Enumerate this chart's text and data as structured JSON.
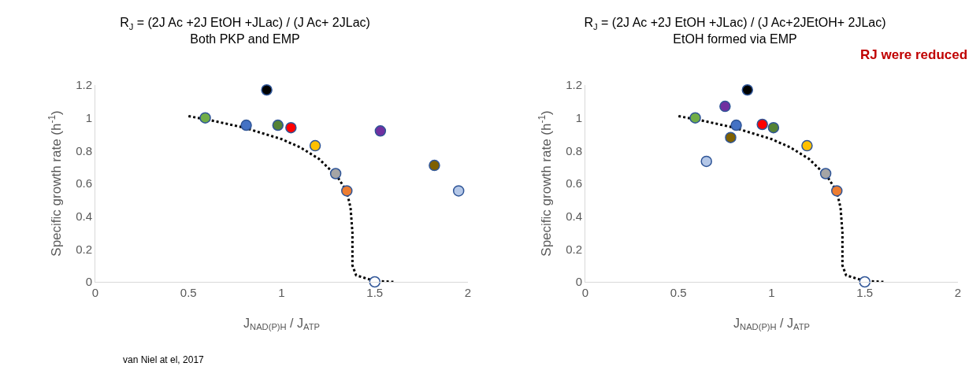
{
  "chart_data": [
    {
      "type": "scatter",
      "title": "R$_{J}$ = (2J Ac +2J EtOH +JLac) / (J Ac+ 2JLac)",
      "subtitle": "Both PKP and EMP",
      "xlabel": "J$_{NAD(P)H}$ / J$_{ATP}$",
      "ylabel": "Specific growth rate (h$^{-1}$)",
      "xlim": [
        0,
        2
      ],
      "xticks": [
        0,
        0.5,
        1,
        1.5,
        2
      ],
      "ylim": [
        0,
        1.2
      ],
      "yticks": [
        0,
        0.2,
        0.4,
        0.6,
        0.8,
        1,
        1.2
      ],
      "grid": false,
      "marker": "circle",
      "annotations": [
        "van Niel at el, 2017"
      ],
      "series": [
        {
          "type": "line",
          "line_style": "dotted",
          "marker": "none",
          "color": "#000000",
          "x": [
            0.5,
            0.6,
            0.8,
            1.0,
            1.1,
            1.2,
            1.3,
            1.35,
            1.37,
            1.38,
            1.38,
            1.4,
            1.5,
            1.6
          ],
          "values": [
            1.01,
            0.99,
            0.94,
            0.87,
            0.82,
            0.75,
            0.64,
            0.55,
            0.45,
            0.3,
            0.1,
            0.04,
            0.005,
            0
          ]
        },
        {
          "x": [
            0.59,
            0.81,
            0.92,
            0.98,
            1.05,
            1.18,
            1.53,
            1.29,
            1.35,
            1.82,
            1.95,
            1.5
          ],
          "values": [
            1.0,
            0.955,
            1.17,
            0.955,
            0.94,
            0.83,
            0.92,
            0.66,
            0.555,
            0.71,
            0.555,
            0
          ],
          "colors": [
            "#70ad47",
            "#4472c4",
            "#000000",
            "#548235",
            "#ff0000",
            "#ffc000",
            "#7030a0",
            "#a5a5a5",
            "#ed7d31",
            "#7f6000",
            "#b4c7e7",
            "#ffffff"
          ]
        }
      ]
    },
    {
      "type": "scatter",
      "title": "R$_{J}$ = (2J Ac +2J EtOH +JLac) / (J Ac+2JEtOH+ 2JLac)",
      "subtitle": "EtOH formed via EMP",
      "xlabel": "J$_{NAD(P)H}$ / J$_{ATP}$",
      "ylabel": "Specific growth rate (h$^{-1}$)",
      "xlim": [
        0,
        2
      ],
      "xticks": [
        0,
        0.5,
        1,
        1.5,
        2
      ],
      "ylim": [
        0,
        1.2
      ],
      "yticks": [
        0,
        0.2,
        0.4,
        0.6,
        0.8,
        1,
        1.2
      ],
      "grid": false,
      "marker": "circle",
      "annotations": [
        "RJ were reduced"
      ],
      "series": [
        {
          "type": "line",
          "line_style": "dotted",
          "marker": "none",
          "color": "#000000",
          "x": [
            0.5,
            0.6,
            0.8,
            1.0,
            1.1,
            1.2,
            1.3,
            1.35,
            1.37,
            1.38,
            1.38,
            1.4,
            1.5,
            1.6
          ],
          "values": [
            1.01,
            0.99,
            0.94,
            0.87,
            0.82,
            0.75,
            0.64,
            0.55,
            0.45,
            0.3,
            0.1,
            0.04,
            0.005,
            0
          ]
        },
        {
          "x": [
            0.59,
            0.75,
            0.87,
            0.81,
            0.95,
            1.01,
            0.78,
            0.65,
            1.19,
            1.29,
            1.35,
            1.5
          ],
          "values": [
            1.0,
            1.07,
            1.17,
            0.955,
            0.96,
            0.94,
            0.88,
            0.735,
            0.83,
            0.66,
            0.555,
            0
          ],
          "colors": [
            "#70ad47",
            "#7030a0",
            "#000000",
            "#4472c4",
            "#ff0000",
            "#548235",
            "#7f6000",
            "#b4c7e7",
            "#ffc000",
            "#a5a5a5",
            "#ed7d31",
            "#ffffff"
          ]
        }
      ]
    }
  ]
}
